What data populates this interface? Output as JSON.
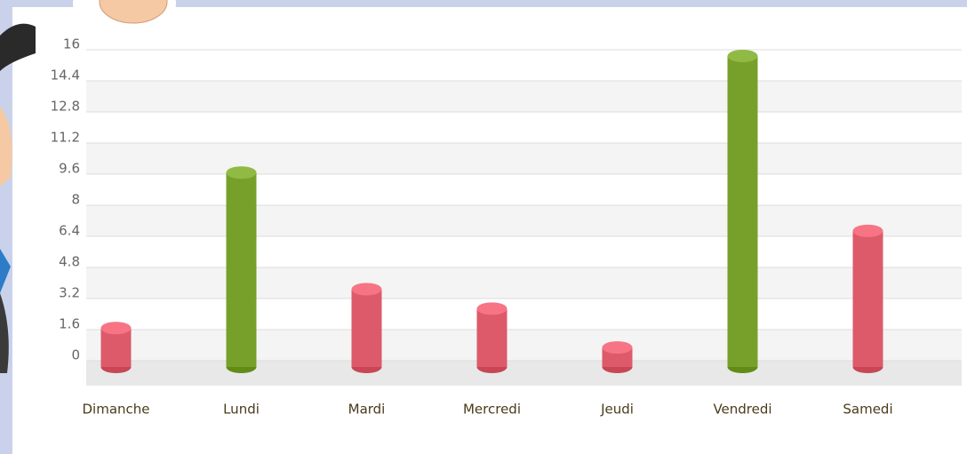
{
  "chart_data": {
    "type": "bar",
    "categories": [
      "Dimanche",
      "Lundi",
      "Mardi",
      "Mercredi",
      "Jeudi",
      "Vendredi",
      "Samedi"
    ],
    "values": [
      2,
      10,
      4,
      3,
      1,
      16,
      7
    ],
    "colors": [
      "#dc5a6a",
      "#77a02a",
      "#dc5a6a",
      "#dc5a6a",
      "#dc5a6a",
      "#77a02a",
      "#dc5a6a"
    ],
    "ylim": [
      0,
      16
    ],
    "yticks": [
      0,
      1.6,
      3.2,
      4.8,
      6.4,
      8,
      9.6,
      11.2,
      12.8,
      14.4,
      16
    ],
    "grid": true
  }
}
